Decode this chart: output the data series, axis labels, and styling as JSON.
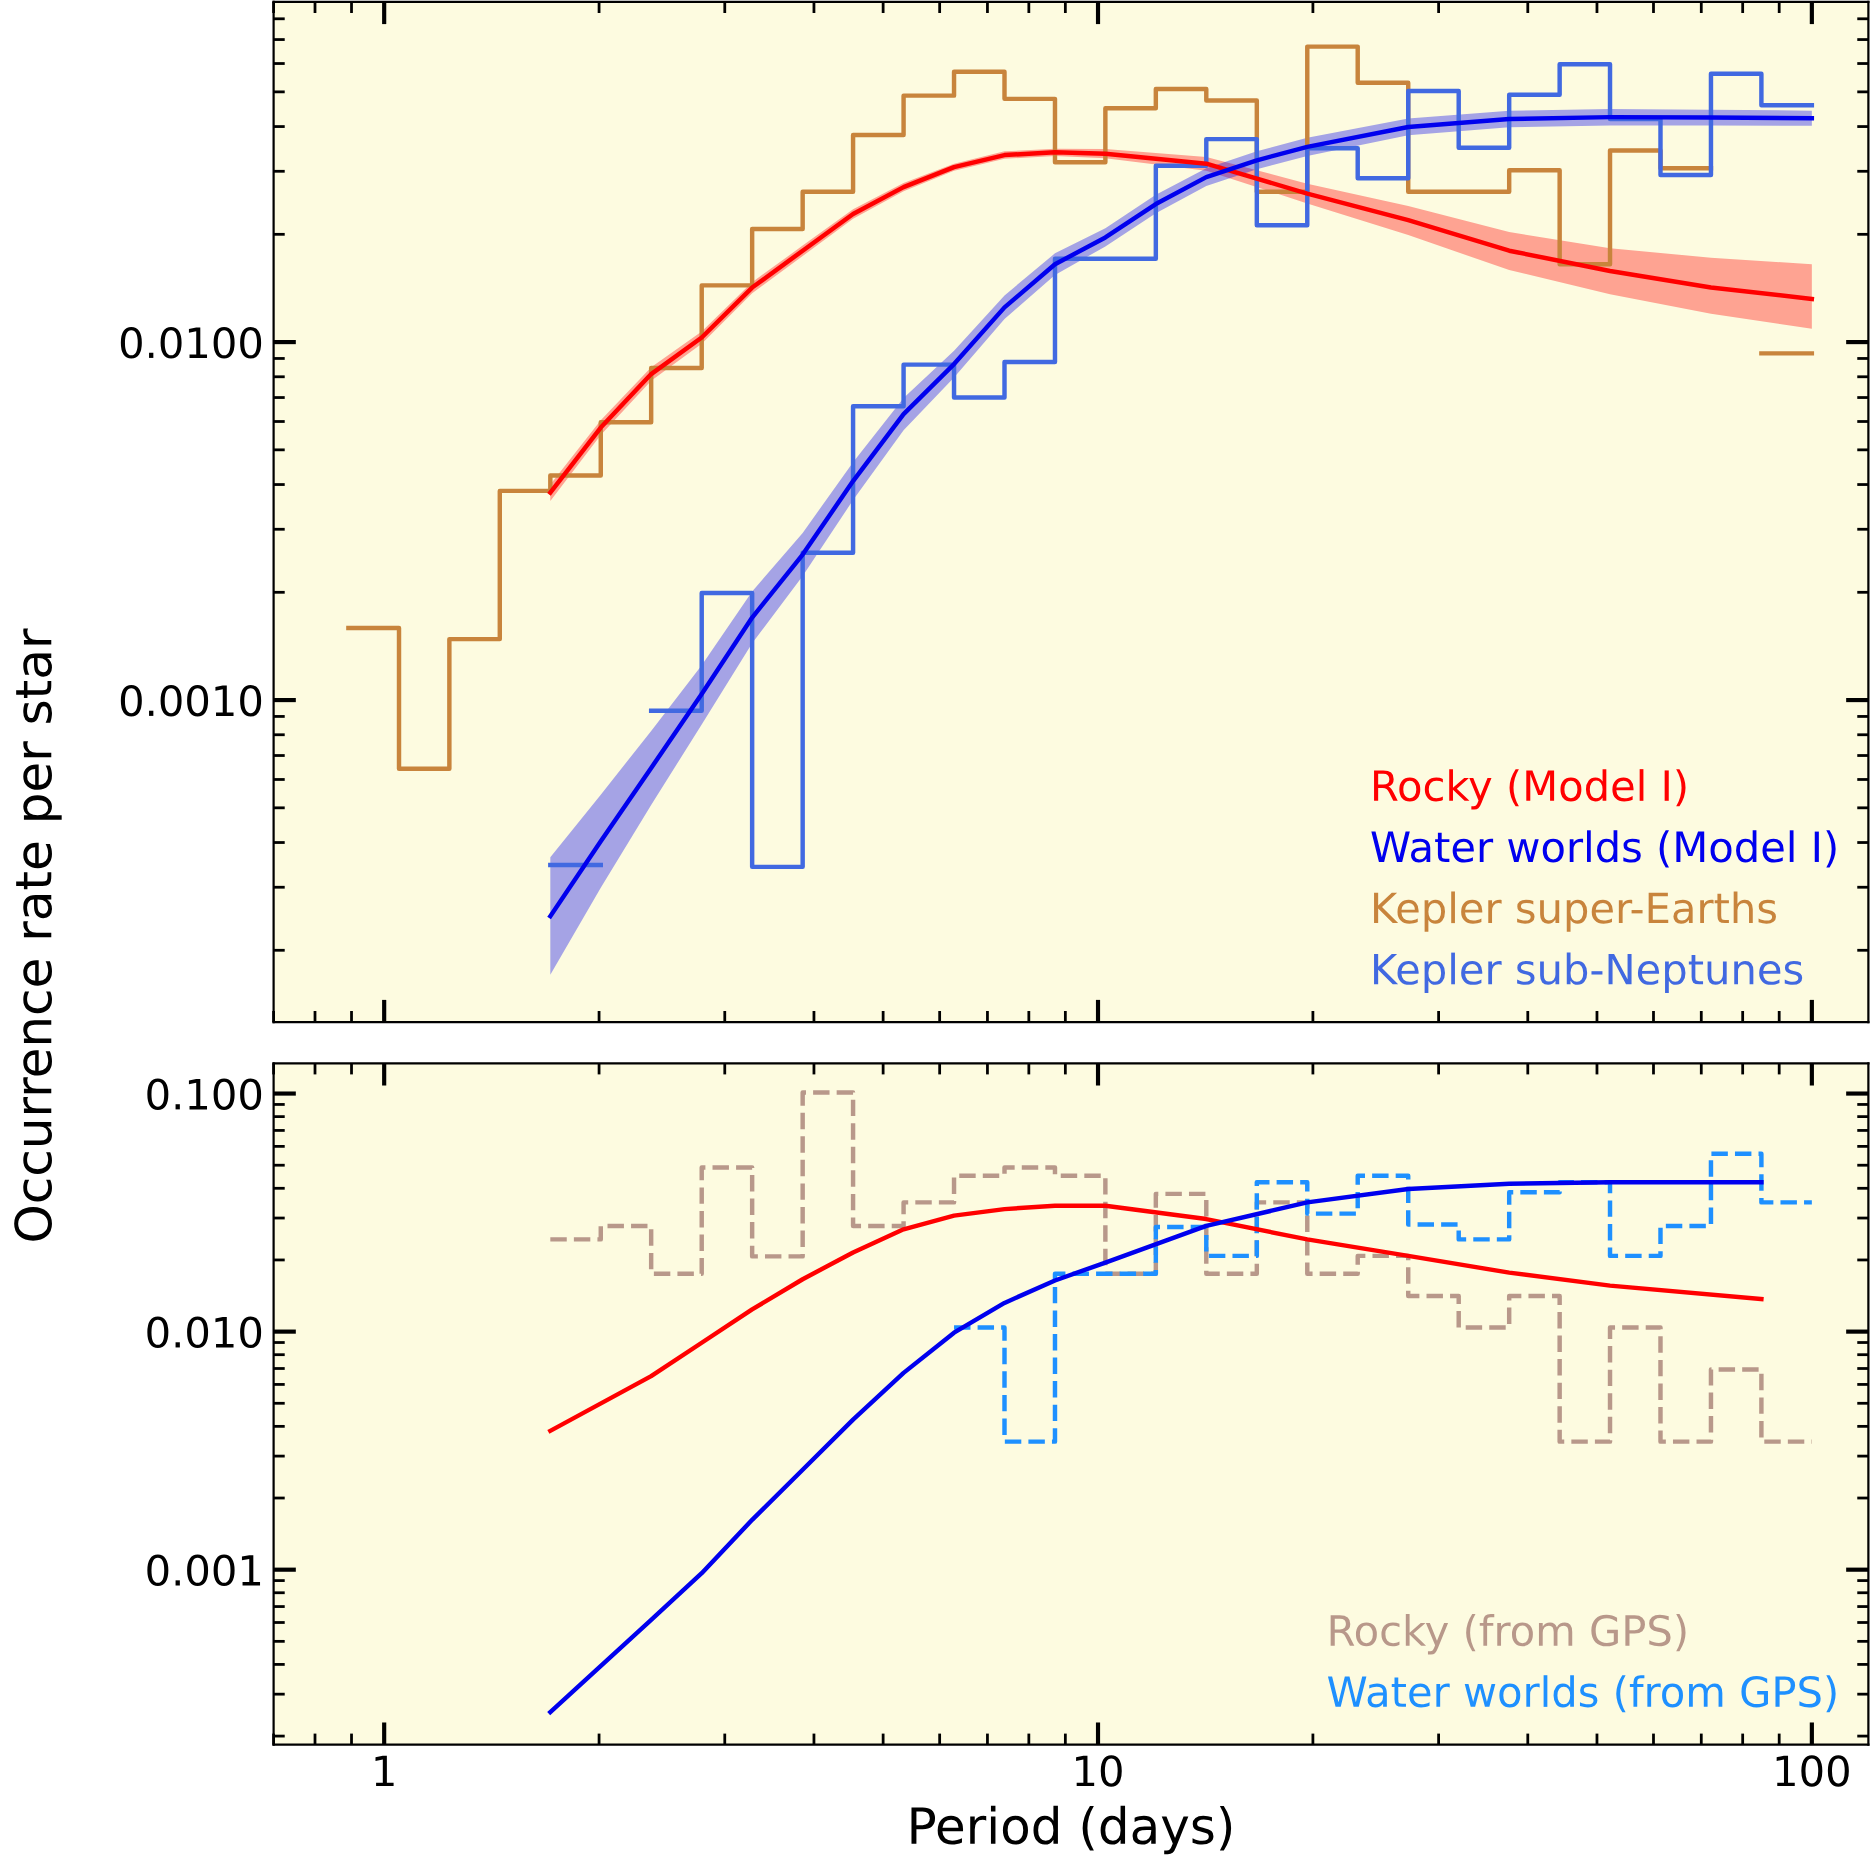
{
  "chart_data": [
    {
      "type": "line",
      "ylabel": "Occurrence rate per star",
      "log": "xy",
      "xlim": [
        0.7,
        120
      ],
      "ylim": [
        0.000126,
        0.0892
      ],
      "yticks": [
        {
          "value": 0.01,
          "label": "0.0100"
        },
        {
          "value": 0.001,
          "label": "0.0010"
        }
      ],
      "xticks": [
        1,
        10,
        100
      ],
      "tick_labels": "y",
      "legend": "bottom right",
      "grid": false,
      "series": [
        {
          "type": "line",
          "name": "Rocky (Model I)",
          "color": "#ff0000",
          "x": [
            1.709,
            2.011,
            2.366,
            2.785,
            3.277,
            3.857,
            4.538,
            5.341,
            6.285,
            7.396,
            8.704,
            10.24,
            14.18,
            19.64,
            27.2,
            37.67,
            52.15,
            72.22,
            100
          ],
          "values": [
            0.0038,
            0.00577,
            0.00814,
            0.0103,
            0.0142,
            0.018,
            0.0228,
            0.0271,
            0.0308,
            0.0333,
            0.0339,
            0.0336,
            0.0315,
            0.026,
            0.0219,
            0.018,
            0.0158,
            0.0142,
            0.0132
          ],
          "lower": [
            0.0036,
            0.0055,
            0.0078,
            0.0099,
            0.0137,
            0.0174,
            0.0221,
            0.0264,
            0.0301,
            0.0325,
            0.0331,
            0.0326,
            0.0301,
            0.0244,
            0.0199,
            0.0159,
            0.0136,
            0.012,
            0.0109
          ],
          "upper": [
            0.004,
            0.00605,
            0.0085,
            0.0107,
            0.0147,
            0.0186,
            0.0235,
            0.0278,
            0.0315,
            0.0341,
            0.0347,
            0.0346,
            0.0329,
            0.0277,
            0.024,
            0.0203,
            0.0183,
            0.0172,
            0.0165
          ]
        },
        {
          "type": "line",
          "name": "Water worlds (Model I)",
          "color": "#0000ee",
          "x": [
            1.709,
            2.011,
            2.366,
            2.785,
            3.277,
            3.857,
            4.538,
            5.341,
            6.285,
            7.396,
            8.704,
            10.24,
            12.05,
            14.18,
            16.69,
            19.64,
            27.2,
            37.67,
            52.15,
            72.22,
            100
          ],
          "values": [
            0.000249,
            0.000403,
            0.000646,
            0.00104,
            0.0017,
            0.00255,
            0.00409,
            0.00629,
            0.00868,
            0.0125,
            0.0165,
            0.0196,
            0.0243,
            0.0289,
            0.0322,
            0.0351,
            0.0399,
            0.042,
            0.0425,
            0.0424,
            0.0422
          ],
          "lower": [
            0.000171,
            0.000299,
            0.000509,
            0.000855,
            0.00144,
            0.00222,
            0.00362,
            0.00567,
            0.00796,
            0.0116,
            0.0154,
            0.0185,
            0.0229,
            0.0273,
            0.0304,
            0.0331,
            0.0378,
            0.0398,
            0.0403,
            0.0403,
            0.0402
          ],
          "upper": [
            0.000364,
            0.000544,
            0.00082,
            0.00125,
            0.00201,
            0.00293,
            0.00462,
            0.00698,
            0.00946,
            0.0135,
            0.0177,
            0.0208,
            0.0258,
            0.0306,
            0.0341,
            0.0372,
            0.0421,
            0.0443,
            0.0448,
            0.0446,
            0.0443
          ]
        },
        {
          "type": "step",
          "name": "Kepler super-Earths",
          "color": "#c8843c",
          "x": [
            0.891,
            1.049,
            1.234,
            1.452,
            1.709,
            2.011,
            2.366,
            2.785,
            3.277,
            3.857,
            4.538,
            5.341,
            6.285,
            7.396,
            8.704,
            10.24,
            12.05,
            14.18,
            16.69,
            19.64,
            23.11,
            27.2,
            32.01,
            37.67,
            44.33,
            52.15,
            61.37,
            72.22,
            84.98,
            100
          ],
          "values": [
            0.00159,
            0.000643,
            0.00148,
            0.00384,
            0.00424,
            0.00597,
            0.00846,
            0.0144,
            0.0207,
            0.0263,
            0.0379,
            0.0488,
            0.0569,
            0.0478,
            0.0318,
            0.045,
            0.0509,
            0.0473,
            0.0263,
            0.0669,
            0.053,
            0.0263,
            0.0263,
            0.0302,
            0.0165,
            0.0343,
            0.0306,
            null,
            0.0093,
            0.0093
          ]
        },
        {
          "type": "step",
          "name": "Kepler sub-Neptunes",
          "color": "#4169e1",
          "x": [
            1.709,
            2.011,
            2.366,
            2.785,
            3.277,
            3.857,
            4.538,
            5.341,
            6.285,
            7.396,
            8.704,
            10.24,
            12.05,
            14.18,
            16.69,
            19.64,
            23.11,
            27.2,
            32.01,
            37.67,
            44.33,
            52.15,
            61.37,
            72.22,
            84.98,
            100
          ],
          "values": [
            0.000346,
            null,
            0.000933,
            0.00199,
            0.000342,
            0.00258,
            0.00662,
            0.00865,
            0.007,
            0.0088,
            0.0171,
            0.0171,
            0.0311,
            0.0369,
            0.0212,
            0.0348,
            0.0287,
            0.0503,
            0.0349,
            0.0491,
            0.0597,
            0.042,
            0.0293,
            0.0562,
            0.0459,
            0.0459
          ]
        }
      ]
    },
    {
      "type": "line",
      "xlabel": "Period (days)",
      "log": "xy",
      "xlim": [
        0.7,
        120
      ],
      "ylim": [
        0.000184,
        0.134
      ],
      "yticks": [
        {
          "value": 0.1,
          "label": "0.100"
        },
        {
          "value": 0.01,
          "label": "0.010"
        },
        0.001
      ],
      "xticks": [
        1,
        10,
        100
      ],
      "legend": "bottom right",
      "grid": false,
      "series": [
        {
          "type": "step",
          "name": "Rocky (from GPS)",
          "color": "#b8988a",
          "line_style": "dashed",
          "x": [
            1.709,
            2.011,
            2.366,
            2.785,
            3.277,
            3.857,
            4.538,
            5.341,
            6.285,
            7.396,
            8.704,
            10.24,
            12.05,
            14.18,
            16.69,
            19.64,
            23.11,
            27.2,
            32.01,
            37.67,
            44.33,
            52.15,
            61.37,
            72.22,
            84.98,
            100
          ],
          "values": [
            0.0244,
            0.0278,
            0.0175,
            0.0489,
            0.0207,
            0.101,
            0.0278,
            0.0349,
            0.0452,
            0.0489,
            0.0452,
            0.0175,
            0.0379,
            0.0175,
            0.0349,
            0.0175,
            0.0208,
            0.0141,
            0.0104,
            0.0141,
            0.00345,
            0.0104,
            0.00345,
            0.00693,
            0.00345,
            0.00345
          ]
        },
        {
          "type": "step",
          "name": "Water worlds (from GPS)",
          "color": "#1e90ff",
          "line_style": "dashed",
          "x": [
            6.285,
            7.396,
            8.704,
            10.24,
            12.05,
            14.18,
            16.69,
            19.64,
            23.11,
            27.2,
            32.01,
            37.67,
            44.33,
            52.15,
            61.37,
            72.22,
            84.98,
            100
          ],
          "values": [
            0.0104,
            0.00345,
            0.0175,
            0.0175,
            0.0275,
            0.0208,
            0.0424,
            0.0313,
            0.0452,
            0.0282,
            0.0244,
            0.0385,
            0.0424,
            0.0208,
            0.0278,
            0.0559,
            0.0349,
            0.0349
          ]
        },
        {
          "type": "line",
          "color": "#ff0000",
          "x": [
            1.709,
            2.366,
            2.785,
            3.277,
            3.857,
            4.538,
            5.341,
            6.285,
            7.396,
            8.704,
            10.24,
            14.18,
            19.64,
            27.2,
            37.67,
            52.15,
            84.98
          ],
          "values": [
            0.00383,
            0.0065,
            0.00898,
            0.0124,
            0.0166,
            0.0215,
            0.0269,
            0.0307,
            0.0327,
            0.0338,
            0.0338,
            0.0297,
            0.0244,
            0.0208,
            0.0177,
            0.0156,
            0.0137
          ]
        },
        {
          "type": "line",
          "color": "#0000ee",
          "x": [
            1.709,
            2.366,
            2.785,
            3.277,
            3.857,
            4.538,
            5.341,
            6.285,
            7.396,
            8.704,
            10.24,
            14.18,
            19.64,
            27.2,
            37.67,
            52.15,
            84.98
          ],
          "values": [
            0.000252,
            0.000615,
            0.000967,
            0.00162,
            0.00263,
            0.00427,
            0.00671,
            0.0099,
            0.0132,
            0.0164,
            0.0195,
            0.0278,
            0.0349,
            0.0397,
            0.0418,
            0.0424,
            0.0424
          ]
        }
      ]
    }
  ]
}
